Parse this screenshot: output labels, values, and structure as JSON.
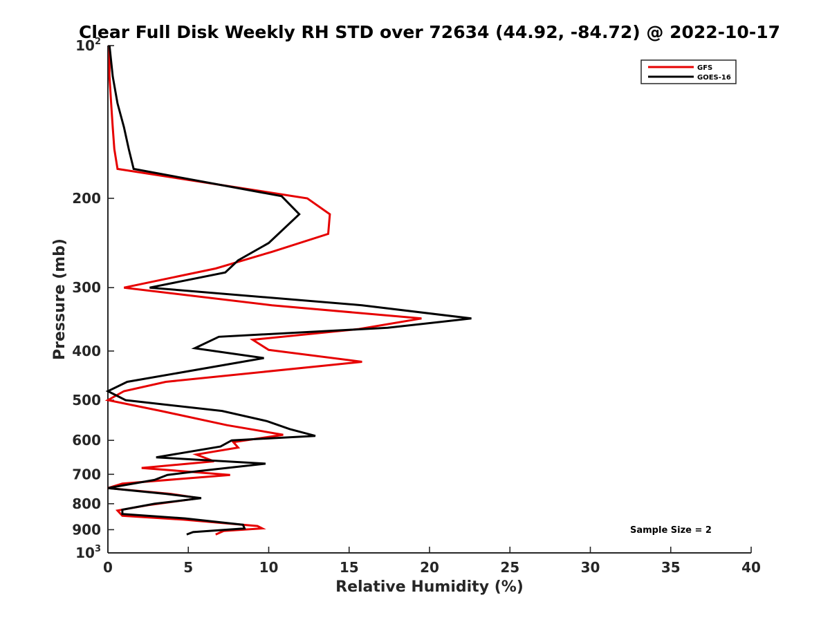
{
  "chart_data": {
    "type": "line",
    "title": "Clear Full Disk Weekly RH STD over 72634 (44.92, -84.72) @ 2022-10-17",
    "xlabel": "Relative Humidity (%)",
    "ylabel": "Pressure (mb)",
    "xlim": [
      0,
      40
    ],
    "ylim": [
      100,
      1000
    ],
    "yscale": "log",
    "y_reversed": true,
    "grid": false,
    "x_ticks": [
      "0",
      "5",
      "10",
      "15",
      "20",
      "25",
      "30",
      "35",
      "40"
    ],
    "y_ticks": [
      {
        "value": 100,
        "base": "10",
        "exp": "2"
      },
      {
        "value": 200,
        "label": "200"
      },
      {
        "value": 300,
        "label": "300"
      },
      {
        "value": 400,
        "label": "400"
      },
      {
        "value": 500,
        "label": "500"
      },
      {
        "value": 600,
        "label": "600"
      },
      {
        "value": 700,
        "label": "700"
      },
      {
        "value": 800,
        "label": "800"
      },
      {
        "value": 900,
        "label": "900"
      },
      {
        "value": 1000,
        "base": "10",
        "exp": "3"
      }
    ],
    "legend": {
      "position": "top-right"
    },
    "annotation": "Sample Size = 2",
    "series": [
      {
        "name": "GFS",
        "color": "#e60000",
        "points": [
          [
            0.1,
            100
          ],
          [
            0.1,
            115
          ],
          [
            0.2,
            130
          ],
          [
            0.3,
            145
          ],
          [
            0.4,
            160
          ],
          [
            0.6,
            175
          ],
          [
            12.4,
            200
          ],
          [
            13.8,
            215
          ],
          [
            13.7,
            235
          ],
          [
            10.2,
            255
          ],
          [
            6.7,
            275
          ],
          [
            1.0,
            300
          ],
          [
            10.2,
            325
          ],
          [
            19.5,
            345
          ],
          [
            15.6,
            362
          ],
          [
            9.0,
            380
          ],
          [
            10.0,
            398
          ],
          [
            15.8,
            420
          ],
          [
            3.6,
            460
          ],
          [
            1.0,
            480
          ],
          [
            0.0,
            500
          ],
          [
            3.3,
            525
          ],
          [
            7.4,
            560
          ],
          [
            10.9,
            585
          ],
          [
            7.8,
            605
          ],
          [
            8.1,
            620
          ],
          [
            5.5,
            640
          ],
          [
            6.6,
            660
          ],
          [
            2.1,
            680
          ],
          [
            7.6,
            702
          ],
          [
            0.9,
            730
          ],
          [
            0.0,
            745
          ],
          [
            3.9,
            765
          ],
          [
            5.7,
            780
          ],
          [
            2.5,
            805
          ],
          [
            0.6,
            825
          ],
          [
            0.9,
            845
          ],
          [
            4.7,
            860
          ],
          [
            9.3,
            885
          ],
          [
            9.6,
            895
          ],
          [
            7.2,
            905
          ],
          [
            6.7,
            920
          ]
        ]
      },
      {
        "name": "GOES-16",
        "color": "#000000",
        "points": [
          [
            0.1,
            100
          ],
          [
            0.3,
            115
          ],
          [
            0.6,
            130
          ],
          [
            1.0,
            145
          ],
          [
            1.3,
            160
          ],
          [
            1.6,
            175
          ],
          [
            10.8,
            198
          ],
          [
            11.9,
            215
          ],
          [
            10.0,
            245
          ],
          [
            8.1,
            265
          ],
          [
            7.3,
            280
          ],
          [
            2.6,
            300
          ],
          [
            15.8,
            325
          ],
          [
            22.6,
            345
          ],
          [
            17.4,
            360
          ],
          [
            6.9,
            375
          ],
          [
            5.4,
            395
          ],
          [
            9.7,
            413
          ],
          [
            1.2,
            460
          ],
          [
            0.0,
            480
          ],
          [
            1.1,
            500
          ],
          [
            7.1,
            525
          ],
          [
            9.9,
            550
          ],
          [
            11.3,
            570
          ],
          [
            12.9,
            588
          ],
          [
            7.7,
            600
          ],
          [
            7.0,
            617
          ],
          [
            3.0,
            648
          ],
          [
            9.8,
            667
          ],
          [
            5.6,
            690
          ],
          [
            3.7,
            702
          ],
          [
            2.9,
            718
          ],
          [
            0.0,
            745
          ],
          [
            3.6,
            765
          ],
          [
            5.8,
            780
          ],
          [
            2.9,
            800
          ],
          [
            0.9,
            822
          ],
          [
            0.9,
            838
          ],
          [
            4.8,
            855
          ],
          [
            8.4,
            880
          ],
          [
            8.5,
            895
          ],
          [
            5.3,
            910
          ],
          [
            4.9,
            920
          ]
        ]
      }
    ]
  }
}
